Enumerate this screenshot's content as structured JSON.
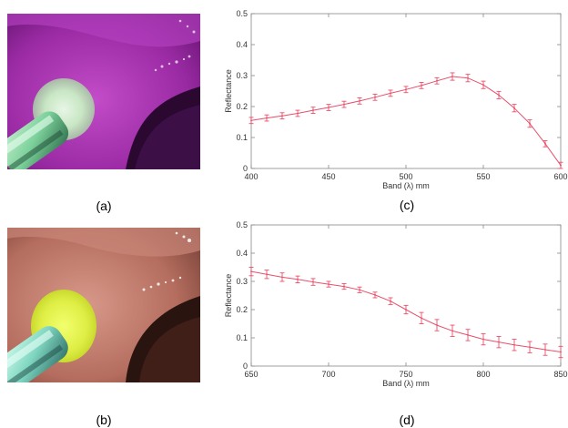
{
  "panels": {
    "a": {
      "caption": "(a)"
    },
    "b": {
      "caption": "(b)"
    },
    "c": {
      "caption": "(c)"
    },
    "d": {
      "caption": "(d)"
    }
  },
  "chart_data": [
    {
      "id": "c",
      "type": "line",
      "title": "",
      "xlabel": "Band (λ) mm",
      "ylabel": "Reflectance",
      "xlim": [
        400,
        600
      ],
      "ylim": [
        0,
        0.5
      ],
      "xticks": [
        400,
        450,
        500,
        550,
        600
      ],
      "yticks": [
        0,
        0.1,
        0.2,
        0.3,
        0.4,
        0.5
      ],
      "grid": false,
      "series": [
        {
          "color": "#e8506a",
          "x": [
            400,
            410,
            420,
            430,
            440,
            450,
            460,
            470,
            480,
            490,
            500,
            510,
            520,
            530,
            540,
            550,
            560,
            570,
            580,
            590,
            600
          ],
          "y": [
            0.155,
            0.163,
            0.17,
            0.178,
            0.188,
            0.197,
            0.207,
            0.218,
            0.23,
            0.243,
            0.255,
            0.268,
            0.283,
            0.297,
            0.292,
            0.27,
            0.237,
            0.195,
            0.145,
            0.08,
            0.01
          ],
          "err": [
            0.01,
            0.01,
            0.01,
            0.01,
            0.01,
            0.01,
            0.01,
            0.01,
            0.01,
            0.01,
            0.01,
            0.01,
            0.01,
            0.012,
            0.012,
            0.012,
            0.012,
            0.012,
            0.012,
            0.01,
            0.01
          ]
        }
      ]
    },
    {
      "id": "d",
      "type": "line",
      "title": "",
      "xlabel": "Band (λ) mm",
      "ylabel": "Reflectance",
      "xlim": [
        650,
        850
      ],
      "ylim": [
        0,
        0.5
      ],
      "xticks": [
        650,
        700,
        750,
        800,
        850
      ],
      "yticks": [
        0,
        0.1,
        0.2,
        0.3,
        0.4,
        0.5
      ],
      "grid": false,
      "series": [
        {
          "color": "#e8506a",
          "x": [
            650,
            660,
            670,
            680,
            690,
            700,
            710,
            720,
            730,
            740,
            750,
            760,
            770,
            780,
            790,
            800,
            810,
            820,
            830,
            840,
            850
          ],
          "y": [
            0.335,
            0.325,
            0.315,
            0.307,
            0.298,
            0.29,
            0.282,
            0.27,
            0.252,
            0.23,
            0.2,
            0.17,
            0.145,
            0.125,
            0.11,
            0.095,
            0.085,
            0.075,
            0.067,
            0.058,
            0.05
          ],
          "err": [
            0.015,
            0.015,
            0.015,
            0.012,
            0.012,
            0.01,
            0.01,
            0.01,
            0.01,
            0.012,
            0.015,
            0.02,
            0.02,
            0.02,
            0.02,
            0.02,
            0.02,
            0.02,
            0.02,
            0.02,
            0.02
          ]
        }
      ]
    }
  ]
}
